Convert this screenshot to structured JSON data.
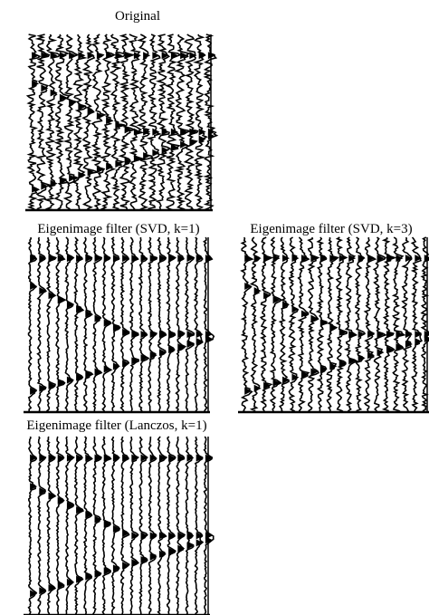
{
  "figures": [
    {
      "title": "Original"
    },
    {
      "title": "Eigenimage filter (SVD, k=1)"
    },
    {
      "title": "Eigenimage filter (SVD, k=3)"
    },
    {
      "title": "Eigenimage filter (Lanczos, k=1)"
    }
  ]
}
